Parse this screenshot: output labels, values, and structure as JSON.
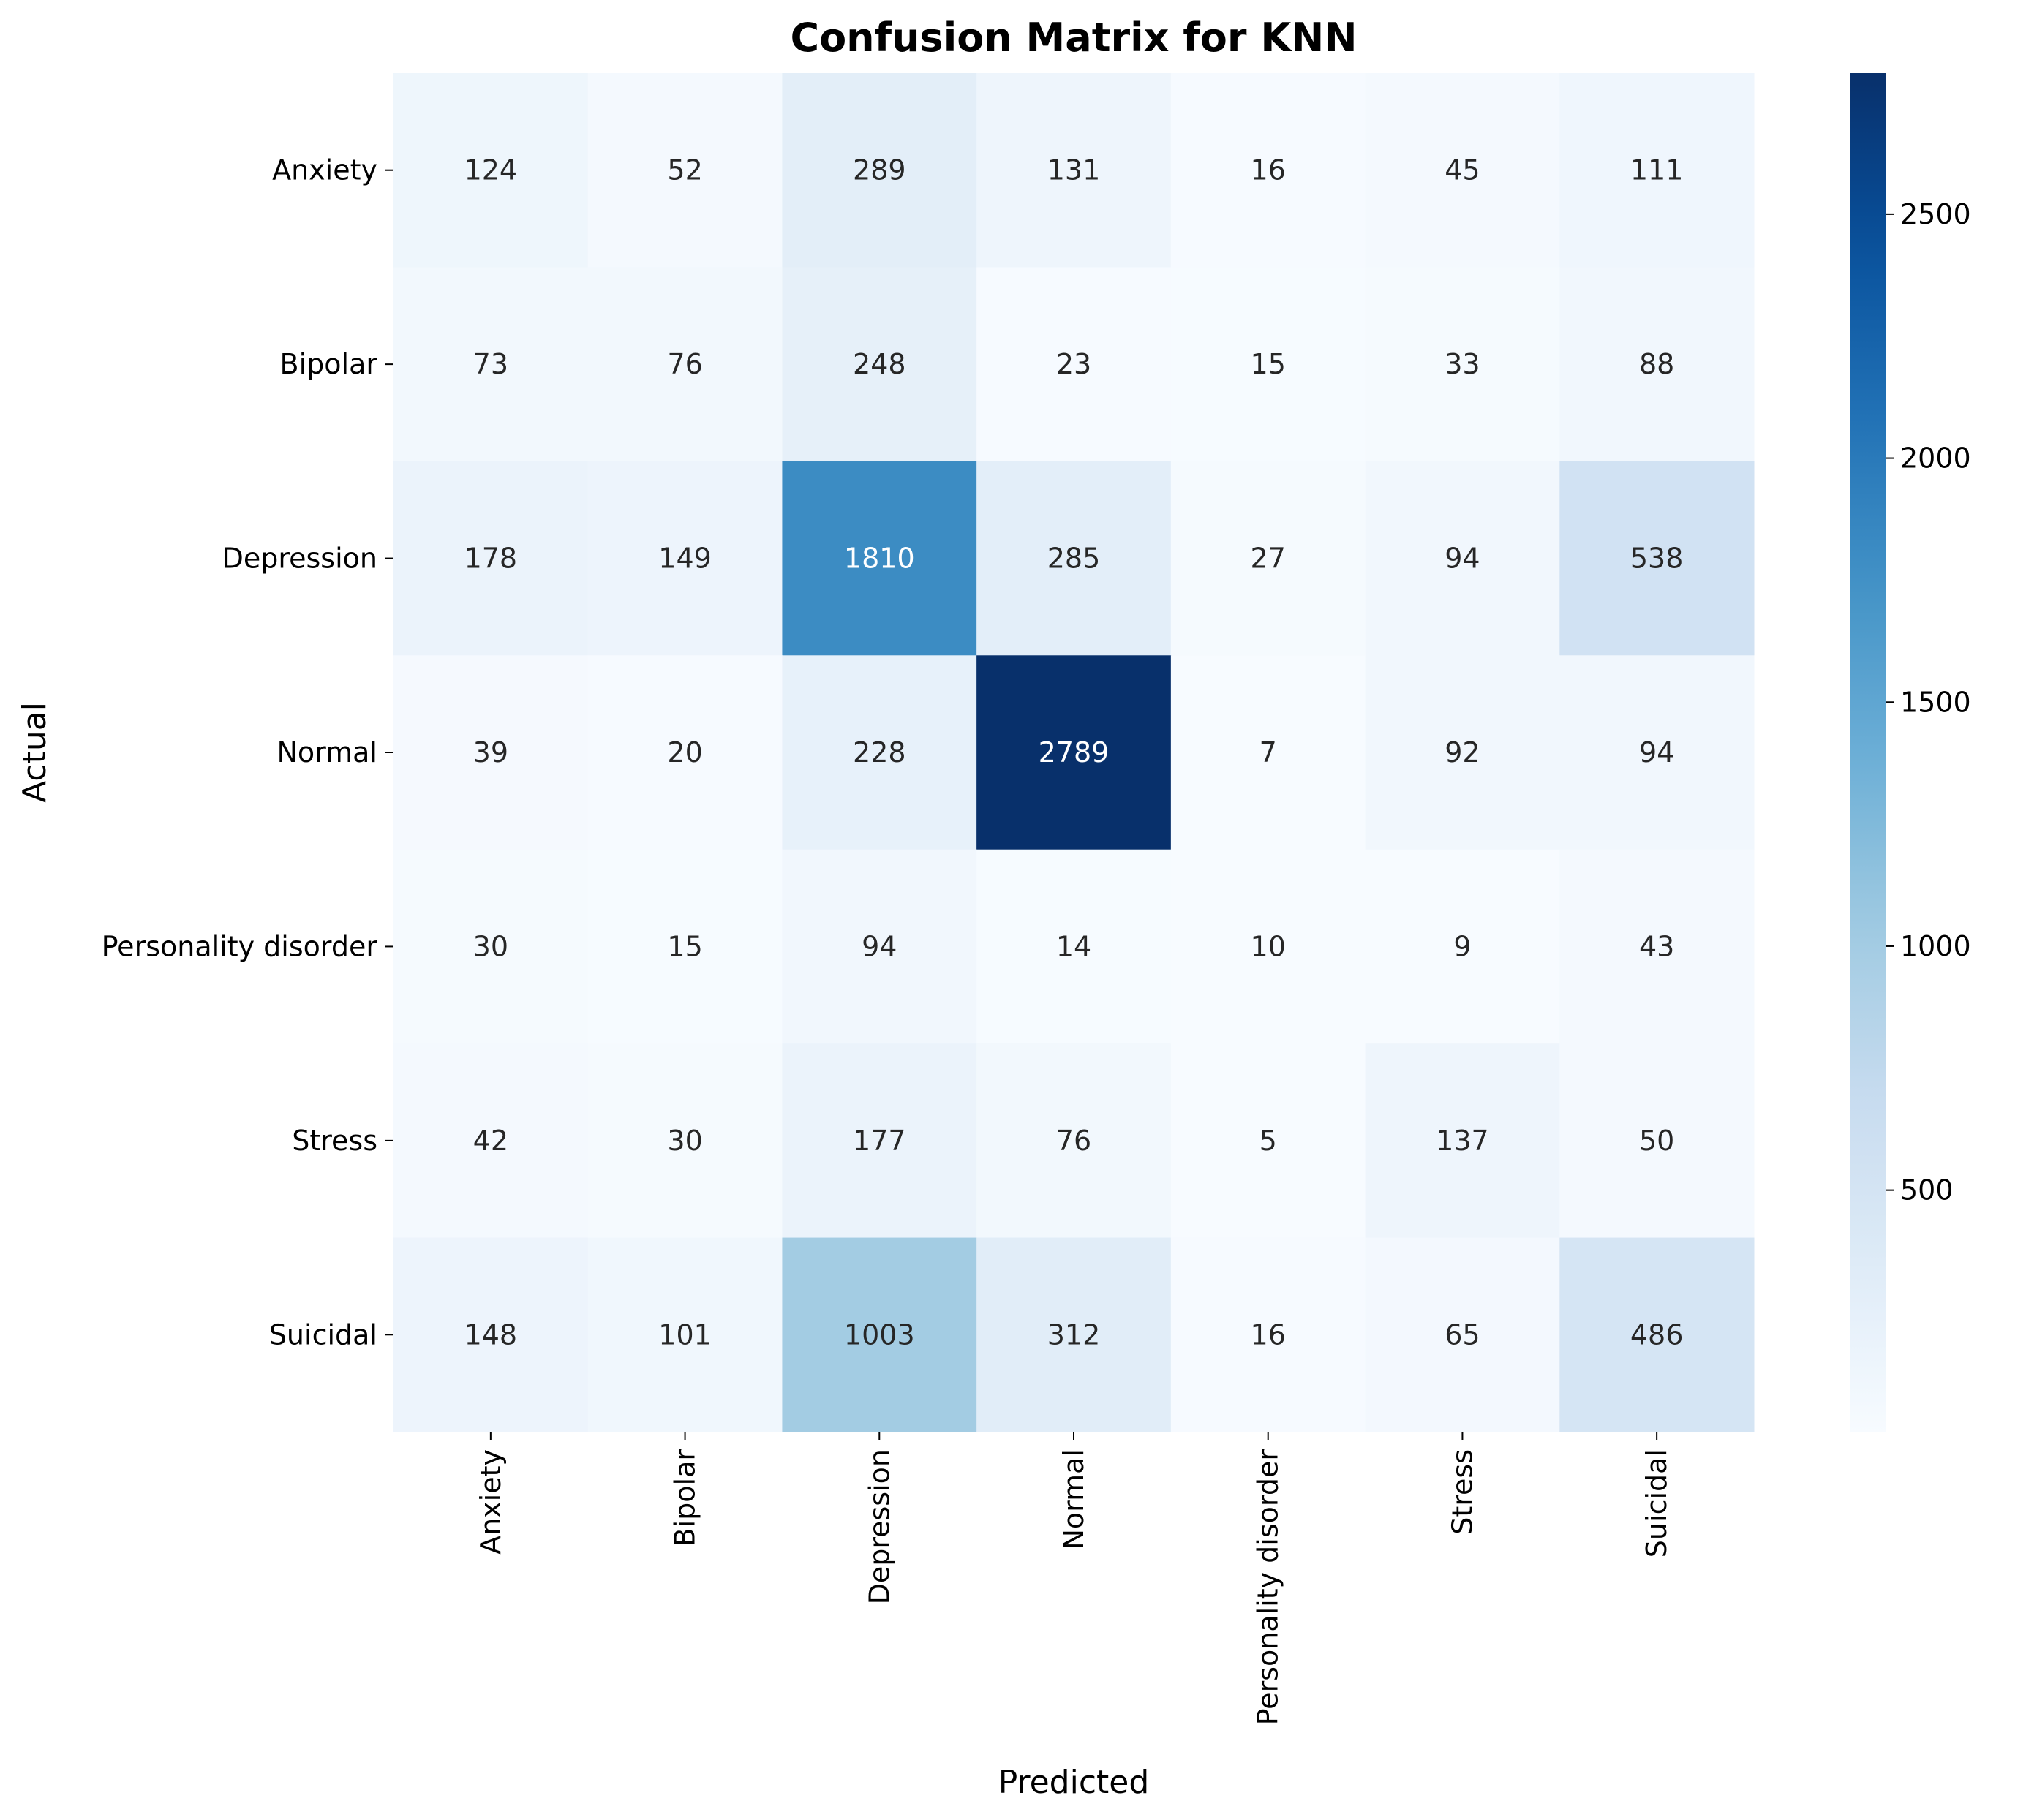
{
  "chart_data": {
    "type": "heatmap",
    "title": "Confusion Matrix for KNN",
    "xlabel": "Predicted",
    "ylabel": "Actual",
    "x_categories": [
      "Anxiety",
      "Bipolar",
      "Depression",
      "Normal",
      "Personality disorder",
      "Stress",
      "Suicidal"
    ],
    "y_categories": [
      "Anxiety",
      "Bipolar",
      "Depression",
      "Normal",
      "Personality disorder",
      "Stress",
      "Suicidal"
    ],
    "values": [
      [
        124,
        52,
        289,
        131,
        16,
        45,
        111
      ],
      [
        73,
        76,
        248,
        23,
        15,
        33,
        88
      ],
      [
        178,
        149,
        1810,
        285,
        27,
        94,
        538
      ],
      [
        39,
        20,
        228,
        2789,
        7,
        92,
        94
      ],
      [
        30,
        15,
        94,
        14,
        10,
        9,
        43
      ],
      [
        42,
        30,
        177,
        76,
        5,
        137,
        50
      ],
      [
        148,
        101,
        1003,
        312,
        16,
        65,
        486
      ]
    ],
    "colormap": "Blues",
    "colorbar": {
      "min": 5,
      "max": 2789,
      "ticks": [
        500,
        1000,
        1500,
        2000,
        2500
      ],
      "tick_labels": [
        "500",
        "1000",
        "1500",
        "2000",
        "2500"
      ]
    },
    "annotations": true,
    "grid": false,
    "legend": "colorbar-right"
  }
}
